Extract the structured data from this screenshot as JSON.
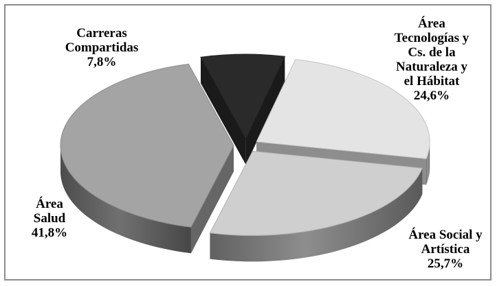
{
  "chart_data": {
    "type": "pie",
    "style": "3d-exploded",
    "title": "",
    "legend": "none",
    "slices": [
      {
        "label_lines": [
          "Área",
          "Tecnologías y",
          "Cs. de la",
          "Naturaleza y",
          "el Hábitat"
        ],
        "value": 24.6,
        "value_label": "24,6%",
        "color": "#e4e4e4"
      },
      {
        "label_lines": [
          "Área Social y",
          "Artística"
        ],
        "value": 25.7,
        "value_label": "25,7%",
        "color": "#cfcfcf"
      },
      {
        "label_lines": [
          "Área",
          "Salud"
        ],
        "value": 41.8,
        "value_label": "41,8%",
        "color": "#a4a4a4"
      },
      {
        "label_lines": [
          "Carreras",
          "Compartidas"
        ],
        "value": 7.8,
        "value_label": "7,8%",
        "color": "#2a2a2a"
      }
    ]
  }
}
